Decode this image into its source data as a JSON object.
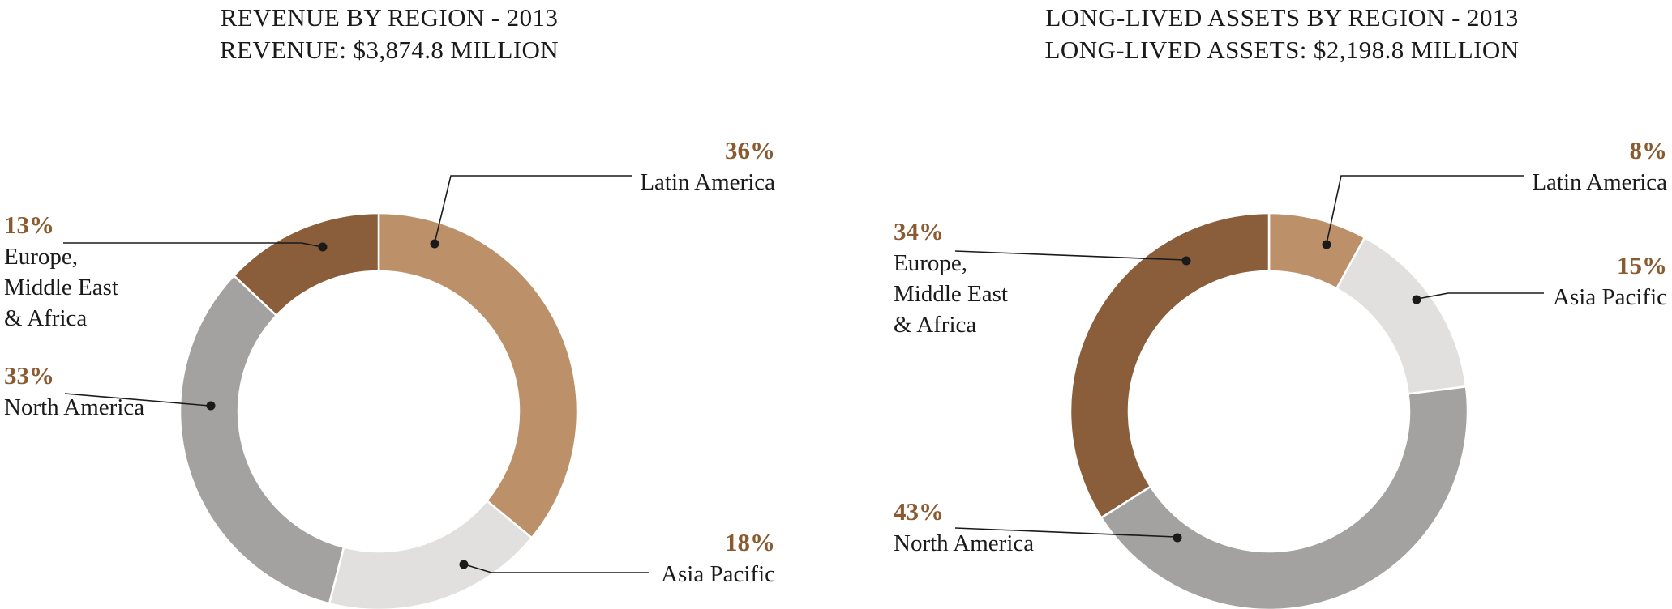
{
  "colors": {
    "background": "#ffffff",
    "text": "#1a1a1a",
    "percent_text": "#8A5B30",
    "leader_line": "#1a1a1a"
  },
  "charts": [
    {
      "title_line1": "REVENUE BY REGION - 2013",
      "title_line2": "REVENUE: $3,874.8 MILLION",
      "callouts": [
        {
          "percent": "36%",
          "lines": [
            "Latin America"
          ]
        },
        {
          "percent": "13%",
          "lines": [
            "Europe,",
            "Middle East",
            "& Africa"
          ]
        },
        {
          "percent": "33%",
          "lines": [
            "North America"
          ]
        },
        {
          "percent": "18%",
          "lines": [
            "Asia Pacific"
          ]
        }
      ]
    },
    {
      "title_line1": "LONG-LIVED ASSETS BY REGION - 2013",
      "title_line2": "LONG-LIVED ASSETS: $2,198.8 MILLION",
      "callouts": [
        {
          "percent": "8%",
          "lines": [
            "Latin America"
          ]
        },
        {
          "percent": "15%",
          "lines": [
            "Asia Pacific"
          ]
        },
        {
          "percent": "34%",
          "lines": [
            "Europe,",
            "Middle East",
            "& Africa"
          ]
        },
        {
          "percent": "43%",
          "lines": [
            "North America"
          ]
        }
      ]
    }
  ],
  "chart_data": [
    {
      "type": "pie",
      "subtype": "donut",
      "title": "REVENUE BY REGION - 2013",
      "subtitle": "REVENUE: $3,874.8 MILLION",
      "categories": [
        "Latin America",
        "Asia Pacific",
        "North America",
        "Europe, Middle East & Africa"
      ],
      "values": [
        36,
        18,
        33,
        13
      ],
      "unit": "percent",
      "colors": [
        "#BC9169",
        "#E1E0DE",
        "#A3A2A0",
        "#8B5E3B"
      ],
      "start_angle_deg": 0,
      "direction": "clockwise",
      "legend_position": "callouts-with-leader-lines"
    },
    {
      "type": "pie",
      "subtype": "donut",
      "title": "LONG-LIVED ASSETS BY REGION - 2013",
      "subtitle": "LONG-LIVED ASSETS: $2,198.8 MILLION",
      "categories": [
        "Latin America",
        "Asia Pacific",
        "North America",
        "Europe, Middle East & Africa"
      ],
      "values": [
        8,
        15,
        43,
        34
      ],
      "unit": "percent",
      "colors": [
        "#BC9169",
        "#E1E0DE",
        "#A3A2A0",
        "#8B5E3B"
      ],
      "start_angle_deg": 0,
      "direction": "clockwise",
      "legend_position": "callouts-with-leader-lines"
    }
  ]
}
